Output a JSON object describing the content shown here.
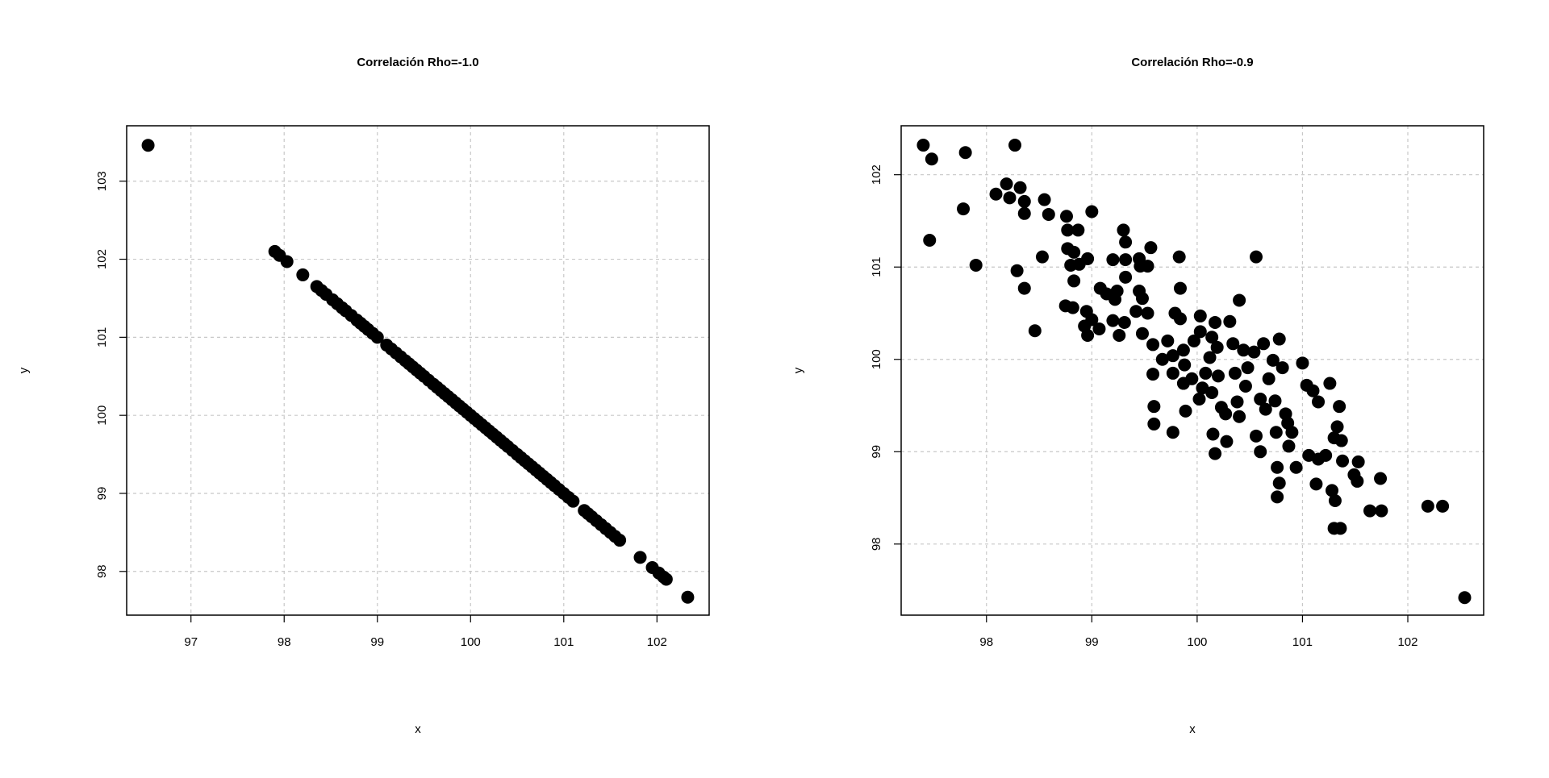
{
  "chart_data": [
    {
      "type": "scatter",
      "title": "Correlación Rho=-1.0",
      "xlabel": "x",
      "ylabel": "y",
      "color": "#000000",
      "grid": true,
      "xlim": [
        96.31,
        102.56
      ],
      "ylim": [
        97.44,
        103.71
      ],
      "xticks": [
        97,
        98,
        99,
        100,
        101,
        102
      ],
      "yticks": [
        98,
        99,
        100,
        101,
        102,
        103
      ],
      "x": [
        96.54,
        97.9,
        97.95,
        98.03,
        98.2,
        98.35,
        98.4,
        98.45,
        98.52,
        98.57,
        98.62,
        98.66,
        98.72,
        98.78,
        98.82,
        98.86,
        98.9,
        98.95,
        99.0,
        99.1,
        99.15,
        99.2,
        99.25,
        99.3,
        99.34,
        99.38,
        99.42,
        99.46,
        99.5,
        99.55,
        99.6,
        99.64,
        99.68,
        99.72,
        99.76,
        99.8,
        99.84,
        99.88,
        99.92,
        99.96,
        100.0,
        100.04,
        100.08,
        100.12,
        100.16,
        100.2,
        100.24,
        100.28,
        100.32,
        100.36,
        100.4,
        100.45,
        100.5,
        100.54,
        100.58,
        100.62,
        100.66,
        100.7,
        100.74,
        100.78,
        100.82,
        100.86,
        100.9,
        100.95,
        101.0,
        101.05,
        101.1,
        101.22,
        101.26,
        101.3,
        101.35,
        101.4,
        101.45,
        101.5,
        101.55,
        101.6,
        101.82,
        101.95,
        102.02,
        102.07,
        102.1,
        102.33
      ],
      "values": [
        103.46,
        102.1,
        102.05,
        101.97,
        101.8,
        101.65,
        101.6,
        101.55,
        101.48,
        101.43,
        101.38,
        101.34,
        101.28,
        101.22,
        101.18,
        101.14,
        101.1,
        101.05,
        101.0,
        100.9,
        100.85,
        100.8,
        100.75,
        100.7,
        100.66,
        100.62,
        100.58,
        100.54,
        100.5,
        100.45,
        100.4,
        100.36,
        100.32,
        100.28,
        100.24,
        100.2,
        100.16,
        100.12,
        100.08,
        100.04,
        100.0,
        99.96,
        99.92,
        99.88,
        99.84,
        99.8,
        99.76,
        99.72,
        99.68,
        99.64,
        99.6,
        99.55,
        99.5,
        99.46,
        99.42,
        99.38,
        99.34,
        99.3,
        99.26,
        99.22,
        99.18,
        99.14,
        99.1,
        99.05,
        99.0,
        98.95,
        98.9,
        98.78,
        98.74,
        98.7,
        98.65,
        98.6,
        98.55,
        98.5,
        98.45,
        98.4,
        98.18,
        98.05,
        97.98,
        97.93,
        97.9,
        97.67
      ]
    },
    {
      "type": "scatter",
      "title": "Correlación Rho=-0.9",
      "xlabel": "x",
      "ylabel": "y",
      "color": "#000000",
      "grid": true,
      "xlim": [
        97.19,
        102.72
      ],
      "ylim": [
        97.23,
        102.53
      ],
      "xticks": [
        98,
        99,
        100,
        101,
        102
      ],
      "yticks": [
        98,
        99,
        100,
        101,
        102
      ],
      "x": [
        97.4,
        97.48,
        97.46,
        97.8,
        97.78,
        97.9,
        98.09,
        98.19,
        98.22,
        98.27,
        98.32,
        98.36,
        98.36,
        98.29,
        98.36,
        98.46,
        98.53,
        98.55,
        98.59,
        98.76,
        98.77,
        98.87,
        98.77,
        98.83,
        98.8,
        98.88,
        98.96,
        99.0,
        98.83,
        98.75,
        98.82,
        98.93,
        98.95,
        98.96,
        99.0,
        99.07,
        99.08,
        99.14,
        99.2,
        99.22,
        99.24,
        99.2,
        99.26,
        99.3,
        99.32,
        99.32,
        99.32,
        99.31,
        99.42,
        99.45,
        99.45,
        99.48,
        99.46,
        99.53,
        99.53,
        99.56,
        99.48,
        99.58,
        99.58,
        99.59,
        99.59,
        99.67,
        99.72,
        99.77,
        99.77,
        99.77,
        99.79,
        99.84,
        99.84,
        99.83,
        99.87,
        99.88,
        99.87,
        99.89,
        99.95,
        99.97,
        100.03,
        100.03,
        100.02,
        100.05,
        100.08,
        100.12,
        100.14,
        100.17,
        100.19,
        100.2,
        100.14,
        100.15,
        100.17,
        100.23,
        100.27,
        100.28,
        100.31,
        100.34,
        100.36,
        100.38,
        100.4,
        100.4,
        100.44,
        100.46,
        100.48,
        100.54,
        100.56,
        100.56,
        100.6,
        100.6,
        100.63,
        100.65,
        100.68,
        100.72,
        100.74,
        100.75,
        100.76,
        100.78,
        100.76,
        100.78,
        100.81,
        100.84,
        100.86,
        100.87,
        100.9,
        100.94,
        101.0,
        101.04,
        101.06,
        101.1,
        101.13,
        101.15,
        101.15,
        101.22,
        101.26,
        101.28,
        101.3,
        101.31,
        101.33,
        101.35,
        101.37,
        101.3,
        101.36,
        101.38,
        101.49,
        101.52,
        101.53,
        101.64,
        101.75,
        101.74,
        102.19,
        102.33,
        102.54
      ],
      "values": [
        102.32,
        102.17,
        101.29,
        102.24,
        101.63,
        101.02,
        101.79,
        101.9,
        101.75,
        102.32,
        101.86,
        101.71,
        101.58,
        100.96,
        100.77,
        100.31,
        101.11,
        101.73,
        101.57,
        101.55,
        101.4,
        101.4,
        101.2,
        101.16,
        101.02,
        101.03,
        101.09,
        101.6,
        100.85,
        100.58,
        100.56,
        100.36,
        100.52,
        100.26,
        100.43,
        100.33,
        100.77,
        100.71,
        101.08,
        100.65,
        100.74,
        100.42,
        100.26,
        101.4,
        101.27,
        101.08,
        100.89,
        100.4,
        100.52,
        100.74,
        101.09,
        100.66,
        101.01,
        101.01,
        100.5,
        101.21,
        100.28,
        100.16,
        99.84,
        99.49,
        99.3,
        100.0,
        100.2,
        100.04,
        99.85,
        99.21,
        100.5,
        100.44,
        100.77,
        101.11,
        100.1,
        99.94,
        99.74,
        99.44,
        99.79,
        100.2,
        100.47,
        100.3,
        99.57,
        99.69,
        99.85,
        100.02,
        100.24,
        100.4,
        100.13,
        99.82,
        99.64,
        99.19,
        98.98,
        99.48,
        99.41,
        99.11,
        100.41,
        100.17,
        99.85,
        99.54,
        99.38,
        100.64,
        100.1,
        99.71,
        99.91,
        100.08,
        101.11,
        99.17,
        99.0,
        99.57,
        100.17,
        99.46,
        99.79,
        99.99,
        99.55,
        99.21,
        98.83,
        98.66,
        98.51,
        100.22,
        99.91,
        99.41,
        99.31,
        99.06,
        99.21,
        98.83,
        99.96,
        99.72,
        98.96,
        99.66,
        98.65,
        98.92,
        99.54,
        98.96,
        99.74,
        98.58,
        99.15,
        98.47,
        99.27,
        99.49,
        99.12,
        98.17,
        98.17,
        98.9,
        98.75,
        98.68,
        98.89,
        98.36,
        98.36,
        98.71,
        98.41,
        98.41,
        97.42
      ]
    }
  ]
}
